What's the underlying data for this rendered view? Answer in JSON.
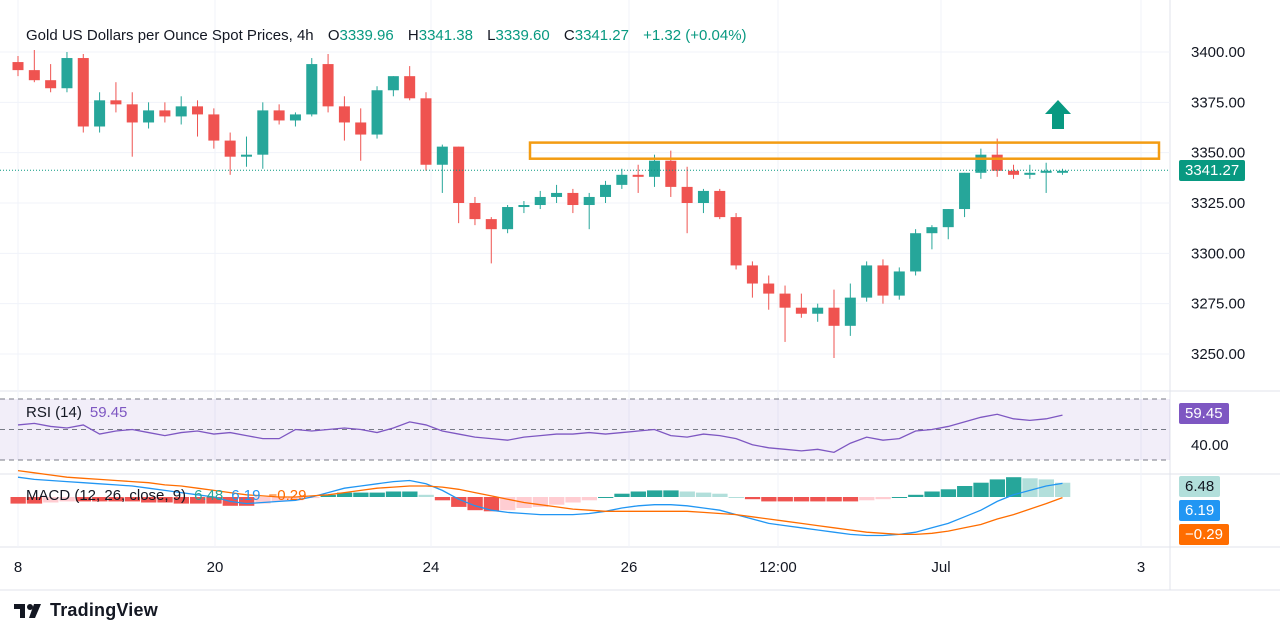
{
  "header": {
    "symbol_label": "Gold US Dollars per Ounce Spot Prices, 4h",
    "o_label": "O",
    "o_value": "3339.96",
    "h_label": "H",
    "h_value": "3341.38",
    "l_label": "L",
    "l_value": "3339.60",
    "c_label": "C",
    "c_value": "3341.27",
    "change": "+1.32 (+0.04%)"
  },
  "rsi": {
    "label": "RSI (14)",
    "value": "59.45",
    "axis_label": "40.00"
  },
  "macd": {
    "label": "MACD (12, 26, close, 9)",
    "hist_value": "6.48",
    "macd_value": "6.19",
    "signal_value": "−0.29"
  },
  "price_tag": "3341.27",
  "brand": "TradingView",
  "colors": {
    "up": "#26a69a",
    "down": "#ef5350",
    "rsi": "#7e57c2",
    "macd": "#2196f3",
    "signal": "#ff6d00",
    "zone": "#f39c12"
  },
  "chart_data": {
    "type": "candlestick",
    "title": "Gold US Dollars per Ounce Spot Prices, 4h",
    "y_ticks": [
      "3400.00",
      "3375.00",
      "3350.00",
      "3325.00",
      "3300.00",
      "3275.00",
      "3250.00"
    ],
    "ylim": [
      3237,
      3410
    ],
    "x_ticks": [
      "8",
      "20",
      "24",
      "26",
      "12:00",
      "Jul",
      "3"
    ],
    "last_price": 3341.27,
    "resistance_zone": [
      3347,
      3355
    ],
    "annotation": "up-arrow",
    "candles": [
      [
        3395,
        3398,
        3388,
        3391
      ],
      [
        3391,
        3401,
        3385,
        3386
      ],
      [
        3386,
        3394,
        3380,
        3382
      ],
      [
        3382,
        3400,
        3380,
        3397
      ],
      [
        3397,
        3399,
        3360,
        3363
      ],
      [
        3363,
        3380,
        3360,
        3376
      ],
      [
        3376,
        3385,
        3370,
        3374
      ],
      [
        3374,
        3380,
        3348,
        3365
      ],
      [
        3365,
        3375,
        3362,
        3371
      ],
      [
        3371,
        3375,
        3365,
        3368
      ],
      [
        3368,
        3378,
        3364,
        3373
      ],
      [
        3373,
        3376,
        3358,
        3369
      ],
      [
        3369,
        3372,
        3352,
        3356
      ],
      [
        3356,
        3360,
        3339,
        3348
      ],
      [
        3348,
        3358,
        3343,
        3349
      ],
      [
        3349,
        3375,
        3342,
        3371
      ],
      [
        3371,
        3374,
        3364,
        3366
      ],
      [
        3366,
        3370,
        3363,
        3369
      ],
      [
        3369,
        3397,
        3368,
        3394
      ],
      [
        3394,
        3399,
        3370,
        3373
      ],
      [
        3373,
        3378,
        3356,
        3365
      ],
      [
        3365,
        3372,
        3346,
        3359
      ],
      [
        3359,
        3383,
        3357,
        3381
      ],
      [
        3381,
        3388,
        3378,
        3388
      ],
      [
        3388,
        3393,
        3376,
        3377
      ],
      [
        3377,
        3380,
        3341,
        3344
      ],
      [
        3344,
        3354,
        3330,
        3353
      ],
      [
        3353,
        3353,
        3315,
        3325
      ],
      [
        3325,
        3328,
        3314,
        3317
      ],
      [
        3317,
        3318,
        3295,
        3312
      ],
      [
        3312,
        3324,
        3310,
        3323
      ],
      [
        3323,
        3326,
        3320,
        3324
      ],
      [
        3324,
        3331,
        3322,
        3328
      ],
      [
        3328,
        3334,
        3325,
        3330
      ],
      [
        3330,
        3332,
        3320,
        3324
      ],
      [
        3324,
        3330,
        3312,
        3328
      ],
      [
        3328,
        3336,
        3325,
        3334
      ],
      [
        3334,
        3342,
        3332,
        3339
      ],
      [
        3339,
        3344,
        3330,
        3338
      ],
      [
        3338,
        3349,
        3333,
        3346
      ],
      [
        3346,
        3351,
        3328,
        3333
      ],
      [
        3333,
        3343,
        3310,
        3325
      ],
      [
        3325,
        3332,
        3320,
        3331
      ],
      [
        3331,
        3332,
        3317,
        3318
      ],
      [
        3318,
        3320,
        3292,
        3294
      ],
      [
        3294,
        3296,
        3278,
        3285
      ],
      [
        3285,
        3289,
        3272,
        3280
      ],
      [
        3280,
        3284,
        3256,
        3273
      ],
      [
        3273,
        3280,
        3268,
        3270
      ],
      [
        3270,
        3275,
        3266,
        3273
      ],
      [
        3273,
        3282,
        3248,
        3264
      ],
      [
        3264,
        3285,
        3259,
        3278
      ],
      [
        3278,
        3296,
        3276,
        3294
      ],
      [
        3294,
        3297,
        3275,
        3279
      ],
      [
        3279,
        3293,
        3277,
        3291
      ],
      [
        3291,
        3312,
        3289,
        3310
      ],
      [
        3310,
        3314,
        3302,
        3313
      ],
      [
        3313,
        3322,
        3307,
        3322
      ],
      [
        3322,
        3340,
        3318,
        3340
      ],
      [
        3340,
        3352,
        3337,
        3349
      ],
      [
        3349,
        3357,
        3338,
        3341
      ],
      [
        3341,
        3344,
        3337,
        3339
      ],
      [
        3339,
        3344,
        3337,
        3340
      ],
      [
        3340,
        3345,
        3330,
        3341
      ],
      [
        3340,
        3342,
        3339,
        3341
      ]
    ],
    "rsi_values": [
      53,
      54,
      52,
      51,
      53,
      47,
      49,
      50,
      48,
      46,
      48,
      49,
      47,
      48,
      46,
      44,
      44,
      50,
      49,
      50,
      51,
      50,
      48,
      51,
      55,
      53,
      49,
      47,
      45,
      44,
      43,
      45,
      46,
      47,
      47,
      48,
      47,
      48,
      49,
      50,
      46,
      45,
      47,
      46,
      44,
      40,
      38,
      37,
      36,
      37,
      35,
      41,
      45,
      43,
      44,
      49,
      50,
      52,
      55,
      58,
      60,
      57,
      56,
      57,
      59.45
    ],
    "macd_values": [
      9,
      8,
      7.5,
      7,
      6.5,
      6,
      5.5,
      5,
      4,
      3,
      2,
      1,
      0,
      -2,
      -3,
      -2.5,
      -2,
      -1.5,
      0,
      2,
      4,
      5,
      6,
      7,
      7.5,
      6,
      3,
      -1,
      -4,
      -6,
      -7,
      -7.5,
      -8,
      -8,
      -8,
      -7.5,
      -6.5,
      -5,
      -4,
      -3.5,
      -3.5,
      -4,
      -5,
      -6,
      -8,
      -10,
      -12,
      -13,
      -14,
      -15,
      -16,
      -17,
      -17.5,
      -17.5,
      -17,
      -16,
      -14,
      -12,
      -9,
      -6,
      -2,
      1,
      3,
      5,
      6.19
    ],
    "signal_values": [
      12,
      11,
      10,
      9,
      8.5,
      8,
      7.5,
      7,
      6.5,
      5.5,
      5,
      4,
      3,
      2,
      1,
      0.5,
      0,
      0,
      0.5,
      1,
      2,
      3,
      4,
      4.5,
      5,
      5,
      4.5,
      3.5,
      2,
      0.5,
      -1,
      -2.5,
      -3.5,
      -4.5,
      -5.5,
      -6,
      -6.5,
      -6.5,
      -6.5,
      -6.5,
      -6.5,
      -6.5,
      -7,
      -7.5,
      -8,
      -9,
      -10,
      -11,
      -12,
      -13,
      -14,
      -15,
      -16,
      -16.5,
      -17,
      -17,
      -16.5,
      -15.5,
      -14,
      -12.5,
      -10,
      -8,
      -5.5,
      -3,
      -0.29
    ],
    "macd_hist": [
      -3,
      -3,
      -2.5,
      -2,
      -2,
      -2,
      -2,
      -2,
      -2.5,
      -2.5,
      -3,
      -3,
      -3,
      -4,
      -4,
      -3,
      -2,
      -1.5,
      -0.5,
      1,
      2,
      2,
      2,
      2.5,
      2.5,
      1,
      -1.5,
      -4.5,
      -6,
      -6.5,
      -6,
      -5,
      -4.5,
      -3.5,
      -2.5,
      -1.5,
      0,
      1.5,
      2.5,
      3,
      3,
      2.5,
      2,
      1.5,
      0,
      -1,
      -2,
      -2,
      -2,
      -2,
      -2,
      -2,
      -1.5,
      -1,
      0,
      1,
      2.5,
      3.5,
      5,
      6.5,
      8,
      9,
      8.5,
      8,
      6.48
    ]
  }
}
